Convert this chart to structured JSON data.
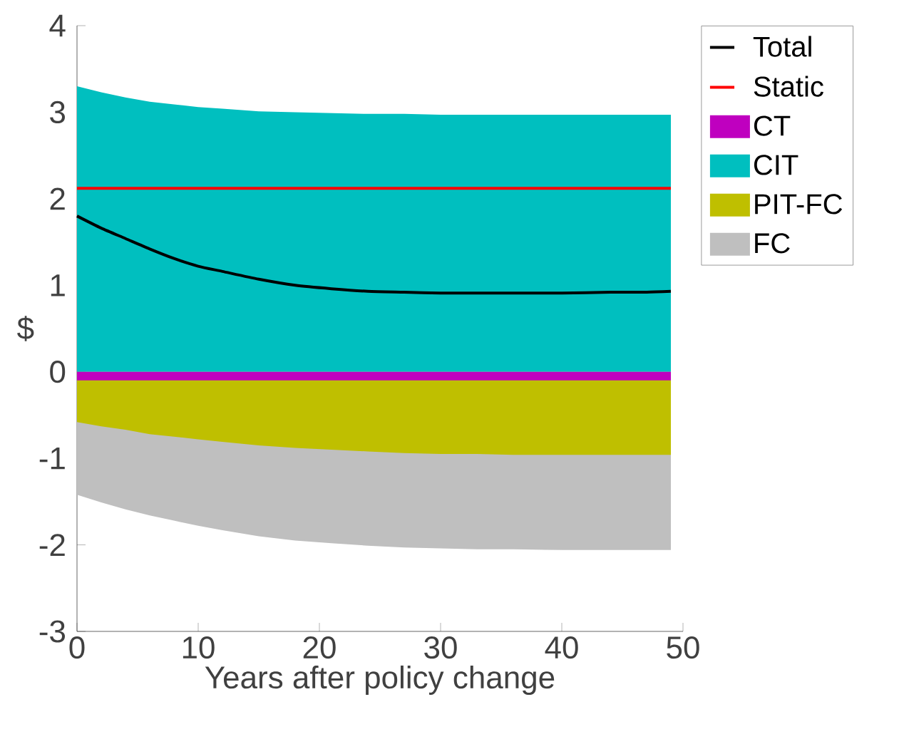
{
  "chart_data": {
    "type": "area",
    "xlabel": "Years after policy change",
    "ylabel": "$",
    "x": [
      0,
      2,
      4,
      6,
      8,
      10,
      12,
      15,
      18,
      21,
      24,
      27,
      30,
      33,
      36,
      40,
      44,
      47,
      49
    ],
    "series": [
      {
        "name": "Total",
        "type": "line",
        "color": "#000000",
        "values": [
          1.8,
          1.66,
          1.54,
          1.42,
          1.31,
          1.22,
          1.16,
          1.07,
          1.0,
          0.96,
          0.93,
          0.92,
          0.91,
          0.91,
          0.91,
          0.91,
          0.92,
          0.92,
          0.93
        ]
      },
      {
        "name": "Static",
        "type": "line",
        "color": "#ff0000",
        "values": [
          2.12,
          2.12,
          2.12,
          2.12,
          2.12,
          2.12,
          2.12,
          2.12,
          2.12,
          2.12,
          2.12,
          2.12,
          2.12,
          2.12,
          2.12,
          2.12,
          2.12,
          2.12,
          2.12
        ]
      },
      {
        "name": "CT",
        "color": "#bf00bf",
        "values": [
          -0.1,
          -0.1,
          -0.1,
          -0.1,
          -0.1,
          -0.1,
          -0.1,
          -0.1,
          -0.1,
          -0.1,
          -0.1,
          -0.1,
          -0.1,
          -0.1,
          -0.1,
          -0.1,
          -0.1,
          -0.1,
          -0.1
        ]
      },
      {
        "name": "CIT",
        "color": "#00bfbf",
        "values": [
          3.3,
          3.23,
          3.17,
          3.12,
          3.09,
          3.06,
          3.04,
          3.01,
          3.0,
          2.99,
          2.98,
          2.98,
          2.97,
          2.97,
          2.97,
          2.97,
          2.97,
          2.97,
          2.97
        ]
      },
      {
        "name": "PIT-FC",
        "color": "#bfbf00",
        "values": [
          -0.58,
          -0.63,
          -0.67,
          -0.72,
          -0.75,
          -0.78,
          -0.81,
          -0.85,
          -0.88,
          -0.9,
          -0.92,
          -0.94,
          -0.95,
          -0.95,
          -0.96,
          -0.96,
          -0.96,
          -0.96,
          -0.96
        ]
      },
      {
        "name": "FC",
        "color": "#bfbfbf",
        "values": [
          -1.42,
          -1.51,
          -1.59,
          -1.66,
          -1.72,
          -1.78,
          -1.83,
          -1.9,
          -1.95,
          -1.98,
          -2.01,
          -2.03,
          -2.04,
          -2.05,
          -2.05,
          -2.06,
          -2.06,
          -2.06,
          -2.06
        ]
      }
    ],
    "xlim": [
      0,
      50
    ],
    "ylim": [
      -3,
      4
    ],
    "xticks": [
      0,
      10,
      20,
      30,
      40,
      50
    ],
    "yticks": [
      -3,
      -2,
      -1,
      0,
      1,
      2,
      3,
      4
    ],
    "legend": "right",
    "grid": false
  }
}
